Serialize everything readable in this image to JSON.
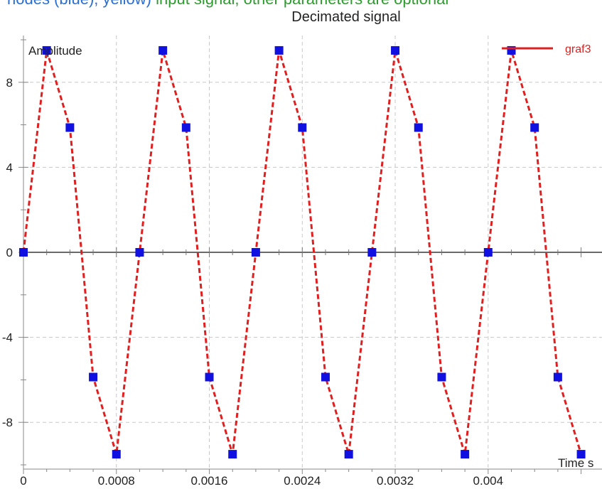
{
  "header_cropped": {
    "part1": "nodes (blue), yellow) ",
    "part2": "input signal, other parameters are optional",
    "color1": "#2a6fd4",
    "color2": "#2e9b2e"
  },
  "chart_data": {
    "type": "line",
    "title": "Decimated signal",
    "xlabel": "Time s",
    "ylabel": "Amplitude",
    "xlim": [
      0,
      0.00498
    ],
    "ylim": [
      -10.2,
      10.2
    ],
    "x_ticks": [
      0,
      0.0008,
      0.0016,
      0.0024,
      0.0032,
      0.004
    ],
    "x_tick_labels": [
      "0",
      "0.0008",
      "0.0016",
      "0.0024",
      "0.0032",
      "0.004"
    ],
    "y_ticks": [
      -8,
      -4,
      0,
      4,
      8
    ],
    "y_tick_labels": [
      "-8",
      "-4",
      "0",
      "4",
      "8"
    ],
    "grid": true,
    "legend_position": "top-right",
    "line_style": "dashed",
    "marker": "square",
    "line_color": "#e02020",
    "marker_color": "#1010e0",
    "series": [
      {
        "name": "graf3",
        "x": [
          0,
          0.0002,
          0.0004,
          0.0006,
          0.0008,
          0.001,
          0.0012,
          0.0014,
          0.0016,
          0.0018,
          0.002,
          0.0022,
          0.0024,
          0.0026,
          0.0028,
          0.003,
          0.0032,
          0.0034,
          0.0036,
          0.0038,
          0.004,
          0.0042,
          0.0044,
          0.0046,
          0.0048
        ],
        "y": [
          0,
          9.5,
          5.87,
          -5.87,
          -9.5,
          0,
          9.5,
          5.87,
          -5.87,
          -9.5,
          0,
          9.5,
          5.87,
          -5.87,
          -9.5,
          0,
          9.5,
          5.87,
          -5.87,
          -9.5,
          0,
          9.5,
          5.87,
          -5.87,
          -9.5
        ]
      }
    ]
  }
}
